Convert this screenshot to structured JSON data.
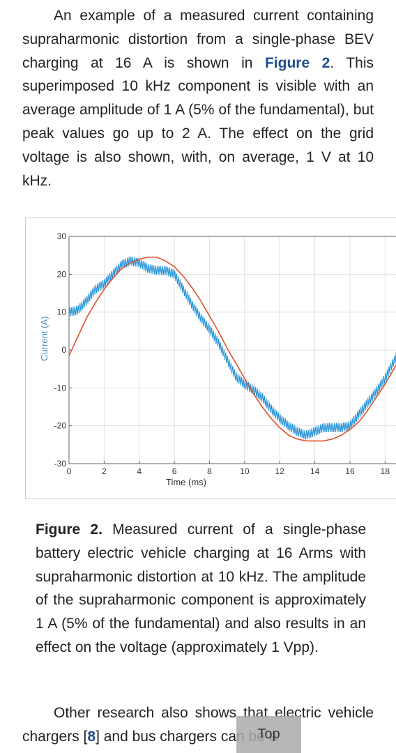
{
  "paragraph1": {
    "before_link": "An example of a measured current containing supraharmonic distortion from a single-phase BEV charging at 16 A is shown in ",
    "link": "Figure 2",
    "after_link": ". This superimposed 10 kHz component is visible with an average amplitude of 1 A (5% of the fundamental), but peak values go up to 2 A. The effect on the grid voltage is also shown, with, on average, 1 V at 10 kHz."
  },
  "figure": {
    "caption_label": "Figure 2.",
    "caption_text": " Measured current of a single-phase battery electric vehicle charging at 16 Arms with supraharmonic distortion at 10 kHz. The amplitude of the supraharmonic component is approximately 1 A (5% of the fundamental) and also results in an effect on the voltage (approximately 1 Vpp)."
  },
  "paragraph2": {
    "before_ref": "Other research also shows that electric vehicle chargers [",
    "ref": "8",
    "after_ref": "] and bus chargers can be a"
  },
  "top_button": "Top",
  "colors": {
    "link": "#1f4e8c",
    "current_series": "#1f8fd6",
    "fundamental_series": "#e0502a",
    "axis_label": "#4a90c8"
  },
  "chart_data": {
    "type": "line",
    "xlabel": "Time (ms)",
    "ylabel": "Current (A)",
    "xlim": [
      0,
      18.9
    ],
    "ylim": [
      -30,
      30
    ],
    "xticks": [
      0,
      2,
      4,
      6,
      8,
      10,
      12,
      14,
      16,
      18
    ],
    "yticks": [
      30,
      20,
      10,
      0,
      -10,
      -20,
      -30
    ],
    "grid": true,
    "series": [
      {
        "color": "#1f8fd6",
        "style": "measured current with 10 kHz ripple",
        "ripple_amplitude": 1.2,
        "ripple_frequency_khz": 10,
        "x": [
          0,
          0.5,
          1,
          1.5,
          2,
          2.5,
          3,
          3.5,
          4,
          4.5,
          5,
          5.5,
          6,
          6.5,
          7,
          7.5,
          8,
          8.5,
          9,
          9.5,
          10,
          10.5,
          11,
          11.5,
          12,
          12.5,
          13,
          13.5,
          14,
          14.5,
          15,
          15.5,
          16,
          16.5,
          17,
          17.5,
          18,
          18.5,
          18.9
        ],
        "y": [
          10,
          10.5,
          13,
          16,
          17.5,
          20,
          22.5,
          23.5,
          23,
          21.5,
          21,
          21,
          20,
          16,
          12,
          8.5,
          5.5,
          2,
          -2.5,
          -7,
          -9,
          -10.5,
          -12.5,
          -15.5,
          -18,
          -20,
          -21.5,
          -22.5,
          -21.5,
          -20.5,
          -20.5,
          -20.5,
          -20,
          -17,
          -14,
          -11,
          -7.5,
          -3,
          0
        ]
      },
      {
        "color": "#e0502a",
        "style": "fundamental",
        "x": [
          0,
          0.5,
          1,
          1.5,
          2,
          2.5,
          3,
          3.5,
          4,
          4.5,
          5,
          5.5,
          6,
          6.5,
          7,
          7.5,
          8,
          8.5,
          9,
          9.5,
          10,
          10.5,
          11,
          11.5,
          12,
          12.5,
          13,
          13.5,
          14,
          14.5,
          15,
          15.5,
          16,
          16.5,
          17,
          17.5,
          18,
          18.5,
          18.9
        ],
        "y": [
          -1.5,
          3.5,
          8.5,
          12.5,
          16,
          19,
          21.5,
          23,
          24,
          24.5,
          24.5,
          23.5,
          22,
          19.5,
          16.5,
          13,
          9,
          5,
          0.5,
          -3.5,
          -7.5,
          -11.5,
          -15,
          -18,
          -20.5,
          -22.5,
          -23.5,
          -24,
          -24,
          -24,
          -23.5,
          -22.5,
          -21,
          -19,
          -16,
          -12.5,
          -9,
          -5,
          -2
        ]
      }
    ]
  }
}
